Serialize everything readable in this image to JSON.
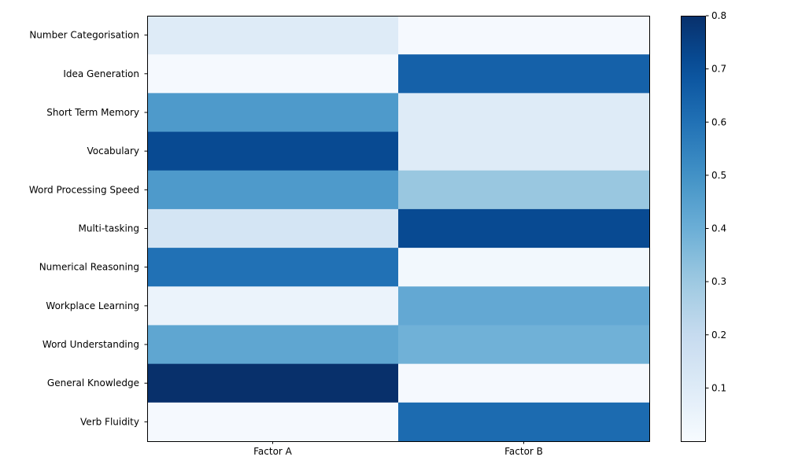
{
  "chart_data": {
    "type": "heatmap",
    "title": "",
    "xlabel": "",
    "ylabel": "",
    "x_categories": [
      "Factor A",
      "Factor B"
    ],
    "y_categories": [
      "Number Categorisation",
      "Idea Generation",
      "Short Term Memory",
      "Vocabulary",
      "Word Processing Speed",
      "Multi-tasking",
      "Numerical Reasoning",
      "Workplace Learning",
      "Word Understanding",
      "General Knowledge",
      "Verb Fluidity"
    ],
    "values": [
      [
        0.1,
        0.01
      ],
      [
        0.01,
        0.65
      ],
      [
        0.47,
        0.1
      ],
      [
        0.72,
        0.1
      ],
      [
        0.47,
        0.31
      ],
      [
        0.14,
        0.72
      ],
      [
        0.6,
        0.02
      ],
      [
        0.05,
        0.42
      ],
      [
        0.43,
        0.39
      ],
      [
        0.8,
        0.01
      ],
      [
        0.01,
        0.62
      ]
    ],
    "colormap": "Blues",
    "colorbar": {
      "min": 0.0,
      "max": 0.8,
      "ticks": [
        0.1,
        0.2,
        0.3,
        0.4,
        0.5,
        0.6,
        0.7,
        0.8
      ],
      "tick_labels": [
        "0.1",
        "0.2",
        "0.3",
        "0.4",
        "0.5",
        "0.6",
        "0.7",
        "0.8"
      ]
    },
    "grid": false
  }
}
